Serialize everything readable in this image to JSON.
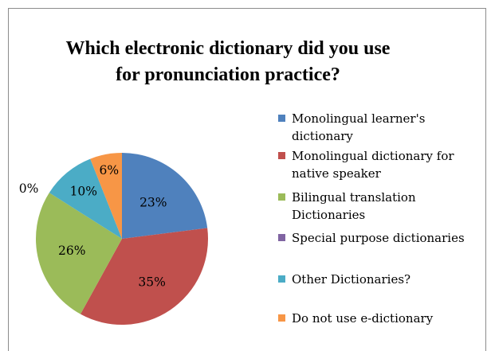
{
  "chart_data": {
    "type": "pie",
    "title": "Which electronic dictionary did you use\nfor pronunciation practice?",
    "slices": [
      {
        "name": "Monolingual learner's dictionary",
        "value": 23,
        "label": "23%",
        "color": "#4f81bd"
      },
      {
        "name": "Monolingual dictionary for native speaker",
        "value": 35,
        "label": "35%",
        "color": "#c0504d"
      },
      {
        "name": "Bilingual translation Dictionaries",
        "value": 26,
        "label": "26%",
        "color": "#9bbb59"
      },
      {
        "name": "Special purpose dictionaries",
        "value": 0,
        "label": "0%",
        "color": "#8064a2"
      },
      {
        "name": "Other Dictionaries?",
        "value": 10,
        "label": "10%",
        "color": "#4bacc6"
      },
      {
        "name": "Do not use e-dictionary",
        "value": 6,
        "label": "6%",
        "color": "#f79646"
      }
    ],
    "legend": {
      "position": "right",
      "items": [
        {
          "label": "Monolingual learner's\ndictionary",
          "color": "#4f81bd"
        },
        {
          "label": "Monolingual dictionary for\nnative speaker",
          "color": "#c0504d"
        },
        {
          "label": "Bilingual translation\nDictionaries",
          "color": "#9bbb59"
        },
        {
          "label": "Special purpose dictionaries",
          "color": "#8064a2"
        },
        {
          "label": "Other Dictionaries?",
          "color": "#4bacc6"
        },
        {
          "label": "Do not use e-dictionary",
          "color": "#f79646"
        }
      ]
    }
  }
}
